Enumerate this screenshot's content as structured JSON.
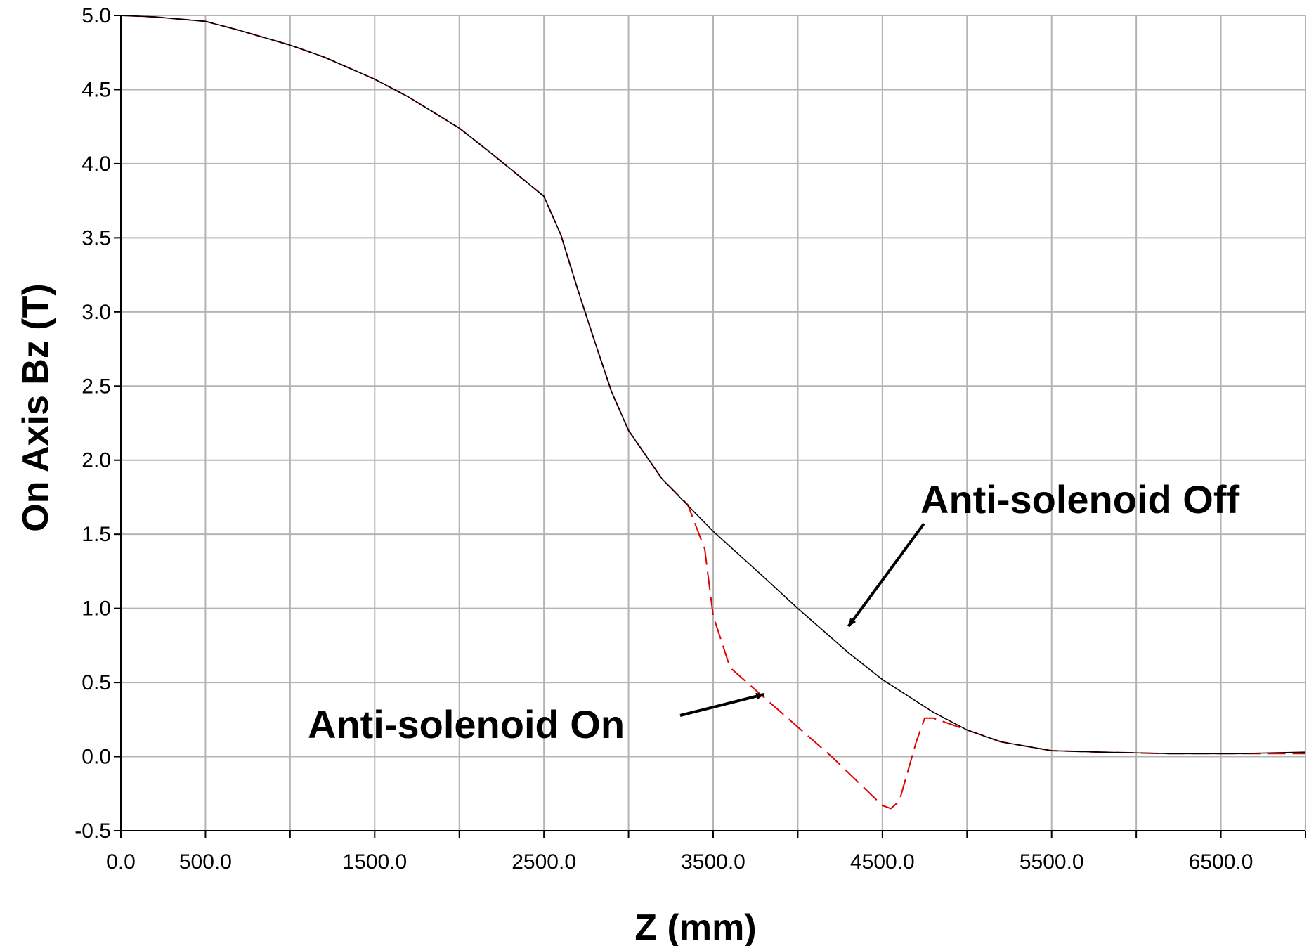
{
  "chart_data": {
    "type": "line",
    "xlabel": "Z (mm)",
    "ylabel": "On Axis Bz  (T)",
    "xlim": [
      0,
      7000
    ],
    "ylim": [
      -0.5,
      5.0
    ],
    "grid": true,
    "x_ticks": [
      0,
      500,
      1000,
      1500,
      2000,
      2500,
      3000,
      3500,
      4000,
      4500,
      5000,
      5500,
      6000,
      6500,
      7000
    ],
    "x_tick_labels": [
      "0.0",
      "500.0",
      "",
      "1500.0",
      "",
      "2500.0",
      "",
      "3500.0",
      "",
      "4500.0",
      "",
      "5500.0",
      "",
      "6500.0",
      ""
    ],
    "y_ticks": [
      -0.5,
      0.0,
      0.5,
      1.0,
      1.5,
      2.0,
      2.5,
      3.0,
      3.5,
      4.0,
      4.5,
      5.0
    ],
    "y_tick_labels": [
      "-0.5",
      "0.0",
      "0.5",
      "1.0",
      "1.5",
      "2.0",
      "2.5",
      "3.0",
      "3.5",
      "4.0",
      "4.5",
      "5.0"
    ],
    "series": [
      {
        "name": "Anti-solenoid Off",
        "color": "#000000",
        "dash": "solid",
        "x": [
          0,
          200,
          500,
          700,
          1000,
          1200,
          1500,
          1700,
          2000,
          2200,
          2500,
          2600,
          2700,
          2800,
          2900,
          3000,
          3200,
          3500,
          3800,
          4000,
          4300,
          4500,
          4800,
          5000,
          5200,
          5500,
          5800,
          6200,
          6600,
          7000
        ],
        "y": [
          5.0,
          4.99,
          4.96,
          4.9,
          4.8,
          4.72,
          4.57,
          4.45,
          4.24,
          4.06,
          3.78,
          3.52,
          3.15,
          2.8,
          2.46,
          2.2,
          1.87,
          1.52,
          1.21,
          1.0,
          0.7,
          0.52,
          0.3,
          0.18,
          0.1,
          0.04,
          0.03,
          0.02,
          0.02,
          0.03
        ]
      },
      {
        "name": "Anti-solenoid On",
        "color": "#e00000",
        "dash": "dashed",
        "x": [
          0,
          200,
          500,
          700,
          1000,
          1200,
          1500,
          1700,
          2000,
          2200,
          2500,
          2600,
          2700,
          2800,
          2900,
          3000,
          3200,
          3350,
          3450,
          3500,
          3600,
          3800,
          4000,
          4200,
          4400,
          4500,
          4550,
          4600,
          4700,
          4750,
          4800,
          5000,
          5200,
          5500,
          5800,
          6200,
          6600,
          7000
        ],
        "y": [
          5.0,
          4.99,
          4.96,
          4.9,
          4.8,
          4.72,
          4.57,
          4.45,
          4.24,
          4.06,
          3.78,
          3.52,
          3.15,
          2.8,
          2.46,
          2.2,
          1.87,
          1.7,
          1.4,
          0.95,
          0.6,
          0.4,
          0.2,
          0.0,
          -0.22,
          -0.33,
          -0.35,
          -0.3,
          0.1,
          0.26,
          0.26,
          0.18,
          0.1,
          0.04,
          0.03,
          0.02,
          0.02,
          0.02
        ]
      }
    ],
    "annotations": [
      {
        "text": "Anti-solenoid Off",
        "target": [
          4300,
          0.88
        ]
      },
      {
        "text": "Anti-solenoid On",
        "target": [
          3800,
          0.42
        ]
      }
    ]
  }
}
